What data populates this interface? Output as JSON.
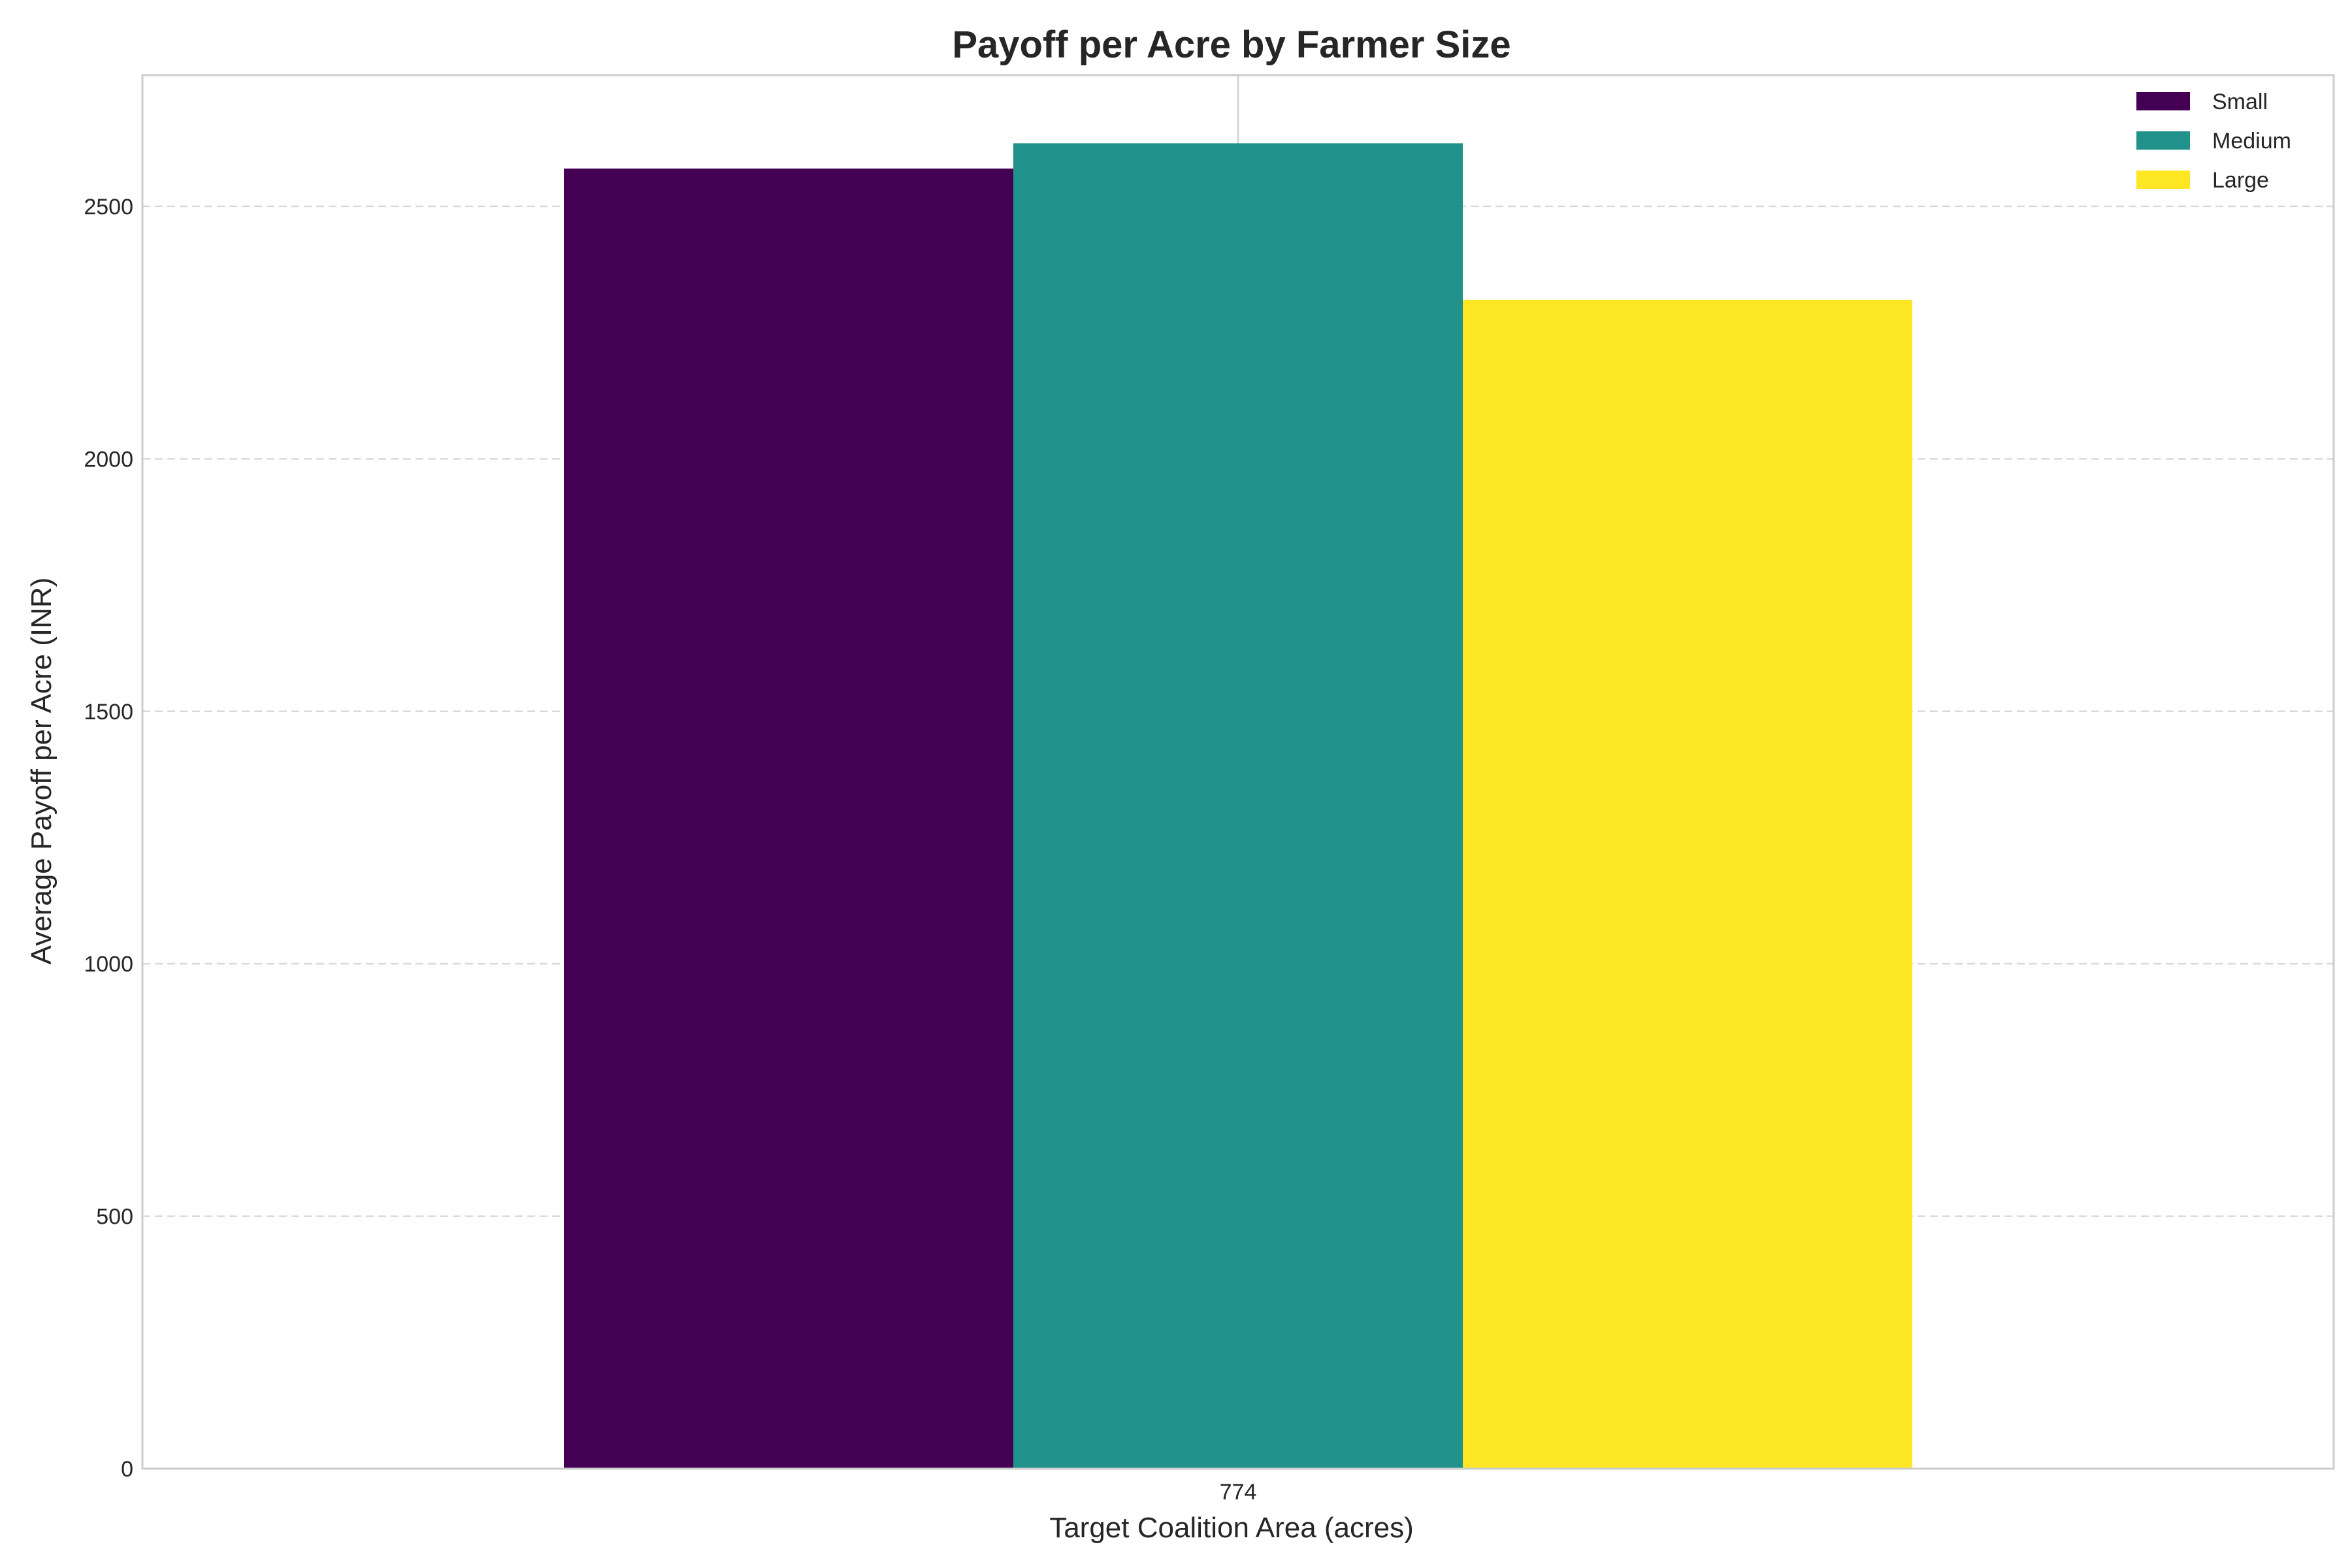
{
  "chart_data": {
    "type": "bar",
    "title": "Payoff per Acre by Farmer Size",
    "xlabel": "Target Coalition Area (acres)",
    "ylabel": "Average Payoff per Acre (INR)",
    "categories": [
      "774"
    ],
    "series": [
      {
        "name": "Small",
        "values": [
          2575
        ],
        "color": "#440154"
      },
      {
        "name": "Medium",
        "values": [
          2625
        ],
        "color": "#21918c"
      },
      {
        "name": "Large",
        "values": [
          2315
        ],
        "color": "#fde725"
      }
    ],
    "ylim": [
      0,
      2760
    ],
    "yticks": [
      0,
      500,
      1000,
      1500,
      2000,
      2500
    ],
    "grid": true,
    "legend_position": "top-right"
  }
}
